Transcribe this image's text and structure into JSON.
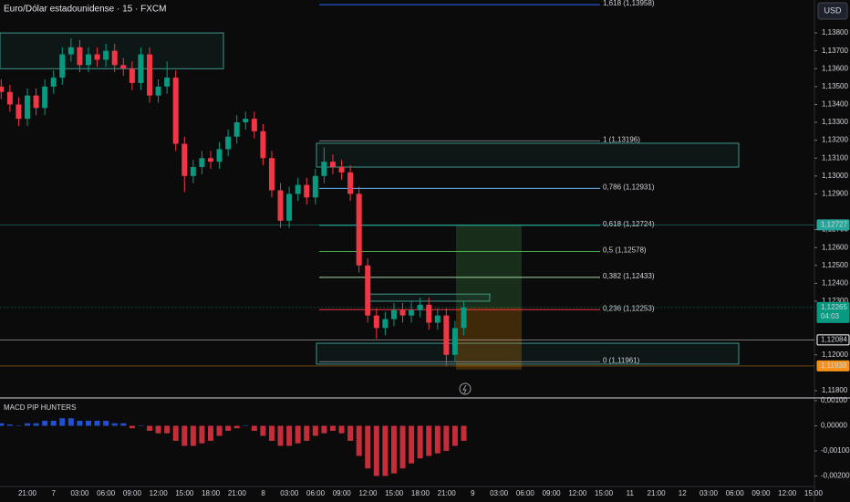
{
  "chart_data": {
    "type": "candlestick",
    "title": "Euro/Dólar estadounidense · 15 · FXCM",
    "currency_button": "USD",
    "up_color": "#089981",
    "down_color": "#f23645",
    "ylim": [
      1.11759,
      1.13984
    ],
    "yticks": [
      {
        "value": 1.138,
        "label": "1,13800"
      },
      {
        "value": 1.137,
        "label": "1,13700"
      },
      {
        "value": 1.136,
        "label": "1,13600"
      },
      {
        "value": 1.135,
        "label": "1,13500"
      },
      {
        "value": 1.134,
        "label": "1,13400"
      },
      {
        "value": 1.133,
        "label": "1,13300"
      },
      {
        "value": 1.132,
        "label": "1,13200"
      },
      {
        "value": 1.131,
        "label": "1,13100"
      },
      {
        "value": 1.13,
        "label": "1,13000"
      },
      {
        "value": 1.129,
        "label": "1,12900"
      },
      {
        "value": 1.127,
        "label": "1,12700"
      },
      {
        "value": 1.126,
        "label": "1,12600"
      },
      {
        "value": 1.125,
        "label": "1,12500"
      },
      {
        "value": 1.124,
        "label": "1,12400"
      },
      {
        "value": 1.123,
        "label": "1,12300"
      },
      {
        "value": 1.12,
        "label": "1,12000"
      },
      {
        "value": 1.118,
        "label": "1,11800"
      }
    ],
    "x_labels": [
      "21:00",
      "7",
      "03:00",
      "06:00",
      "09:00",
      "12:00",
      "15:00",
      "18:00",
      "21:00",
      "8",
      "03:00",
      "06:00",
      "09:00",
      "12:00",
      "15:00",
      "18:00",
      "21:00",
      "9",
      "03:00",
      "06:00",
      "09:00",
      "12:00",
      "15:00",
      "11",
      "21:00",
      "12",
      "03:00",
      "06:00",
      "09:00",
      "12:00",
      "15:00"
    ],
    "ohlc": [
      [
        1.135,
        1.1354,
        1.1343,
        1.1347
      ],
      [
        1.1347,
        1.1351,
        1.1336,
        1.134
      ],
      [
        1.134,
        1.1344,
        1.1328,
        1.1332
      ],
      [
        1.1332,
        1.1349,
        1.1328,
        1.1345
      ],
      [
        1.1345,
        1.1349,
        1.1334,
        1.1338
      ],
      [
        1.1338,
        1.1354,
        1.1334,
        1.135
      ],
      [
        1.135,
        1.1359,
        1.1346,
        1.1355
      ],
      [
        1.1355,
        1.1372,
        1.1351,
        1.1368
      ],
      [
        1.1368,
        1.1377,
        1.1364,
        1.1372
      ],
      [
        1.1372,
        1.1376,
        1.1358,
        1.1362
      ],
      [
        1.1362,
        1.1372,
        1.1358,
        1.1368
      ],
      [
        1.1368,
        1.1372,
        1.1361,
        1.1365
      ],
      [
        1.1365,
        1.1374,
        1.1361,
        1.137
      ],
      [
        1.137,
        1.1374,
        1.1358,
        1.1362
      ],
      [
        1.1362,
        1.1366,
        1.1356,
        1.136
      ],
      [
        1.136,
        1.1364,
        1.1348,
        1.1352
      ],
      [
        1.1352,
        1.1372,
        1.1348,
        1.1368
      ],
      [
        1.1368,
        1.1372,
        1.1341,
        1.1345
      ],
      [
        1.1345,
        1.1354,
        1.1341,
        1.135
      ],
      [
        1.135,
        1.1364,
        1.1346,
        1.1355
      ],
      [
        1.1355,
        1.1359,
        1.1314,
        1.1318
      ],
      [
        1.1318,
        1.1322,
        1.1291,
        1.13
      ],
      [
        1.13,
        1.1309,
        1.1296,
        1.1305
      ],
      [
        1.1305,
        1.1314,
        1.1301,
        1.131
      ],
      [
        1.131,
        1.1314,
        1.1304,
        1.1308
      ],
      [
        1.1308,
        1.1319,
        1.1304,
        1.1315
      ],
      [
        1.1315,
        1.1326,
        1.1311,
        1.1322
      ],
      [
        1.1322,
        1.1334,
        1.1318,
        1.133
      ],
      [
        1.133,
        1.1336,
        1.1326,
        1.1332
      ],
      [
        1.1332,
        1.1336,
        1.1321,
        1.1325
      ],
      [
        1.1325,
        1.1329,
        1.1306,
        1.131
      ],
      [
        1.131,
        1.1314,
        1.1288,
        1.1292
      ],
      [
        1.1292,
        1.1296,
        1.1271,
        1.1275
      ],
      [
        1.1275,
        1.1294,
        1.1271,
        1.129
      ],
      [
        1.129,
        1.1299,
        1.1286,
        1.1295
      ],
      [
        1.1295,
        1.1299,
        1.1284,
        1.1288
      ],
      [
        1.1288,
        1.1304,
        1.1284,
        1.13
      ],
      [
        1.13,
        1.1316,
        1.1296,
        1.1308
      ],
      [
        1.1308,
        1.1312,
        1.1301,
        1.1305
      ],
      [
        1.1305,
        1.1309,
        1.1298,
        1.1302
      ],
      [
        1.1302,
        1.1306,
        1.1286,
        1.129
      ],
      [
        1.129,
        1.1294,
        1.1246,
        1.125
      ],
      [
        1.125,
        1.1254,
        1.1218,
        1.1222
      ],
      [
        1.1222,
        1.1226,
        1.1209,
        1.1215
      ],
      [
        1.1215,
        1.1224,
        1.1211,
        1.122
      ],
      [
        1.122,
        1.1229,
        1.1216,
        1.1225
      ],
      [
        1.1225,
        1.1229,
        1.1218,
        1.1222
      ],
      [
        1.1222,
        1.123,
        1.1218,
        1.1225
      ],
      [
        1.1225,
        1.1232,
        1.1221,
        1.1228
      ],
      [
        1.1228,
        1.1232,
        1.1214,
        1.1218
      ],
      [
        1.1218,
        1.1226,
        1.1214,
        1.1222
      ],
      [
        1.1222,
        1.1226,
        1.11938,
        1.12
      ],
      [
        1.12,
        1.1219,
        1.1196,
        1.1215
      ],
      [
        1.1215,
        1.123,
        1.1211,
        1.12265
      ]
    ],
    "fib_levels": [
      {
        "label": "1,618 (1,13958)",
        "value": 1.13958,
        "color": "#2962ff"
      },
      {
        "label": "1 (1,13196)",
        "value": 1.13196,
        "color": "#787b86"
      },
      {
        "label": "0,786 (1,12931)",
        "value": 1.12931,
        "color": "#64b5f6"
      },
      {
        "label": "0,618 (1,12724)",
        "value": 1.12724,
        "color": "#26a69a"
      },
      {
        "label": "0,5 (1,12578)",
        "value": 1.12578,
        "color": "#4caf50"
      },
      {
        "label": "0,382 (1,12433)",
        "value": 1.12433,
        "color": "#a5d6a7"
      },
      {
        "label": "0,236 (1,12253)",
        "value": 1.12253,
        "color": "#f23645"
      },
      {
        "label": "0 (1,11961)",
        "value": 1.11961,
        "color": "#787b86"
      }
    ],
    "zones": [
      {
        "top": 1.138,
        "bottom": 1.136
      },
      {
        "top": 1.13183,
        "bottom": 1.1305
      },
      {
        "top": 1.12065,
        "bottom": 1.11948
      },
      {
        "top": 1.1234,
        "bottom": 1.123
      }
    ],
    "price_tags": [
      {
        "value": 1.12727,
        "label": "1,12727",
        "color": "#26a69a"
      },
      {
        "value": 1.12265,
        "label": "1,12265",
        "countdown": "04:03",
        "color": "#089981"
      },
      {
        "value": 1.12084,
        "label": "1,12084",
        "color": "#ffffff"
      },
      {
        "value": 1.11938,
        "label": "1,11938",
        "color": "#f7931a"
      }
    ],
    "macd": {
      "title": "MACD PIP HUNTERS",
      "ylim": [
        -0.00242,
        0.00111
      ],
      "yticks": [
        {
          "value": 0.001,
          "label": "0,00100"
        },
        {
          "value": 0,
          "label": "0,00000"
        },
        {
          "value": -0.001,
          "label": "-0,00100"
        },
        {
          "value": -0.002,
          "label": "-0,00200"
        }
      ],
      "positive_color": "#2962ff",
      "negative_color": "#f23645",
      "values": [
        0.0001,
        5e-05,
        0,
        0.0001,
        0.0001,
        0.0002,
        0.0002,
        0.0003,
        0.0003,
        0.0002,
        0.0002,
        0.0002,
        0.0002,
        0.0001,
        0.0001,
        -0.0001,
        0,
        -0.0002,
        -0.0003,
        -0.0003,
        -0.0006,
        -0.0008,
        -0.0008,
        -0.0007,
        -0.0006,
        -0.0004,
        -0.0002,
        -0.0001,
        0,
        -0.0002,
        -0.0004,
        -0.0006,
        -0.0008,
        -0.0008,
        -0.0007,
        -0.0006,
        -0.0004,
        -0.0003,
        -0.0002,
        -0.0003,
        -0.0006,
        -0.0012,
        -0.0017,
        -0.002,
        -0.002,
        -0.0019,
        -0.0017,
        -0.0015,
        -0.0013,
        -0.0012,
        -0.0011,
        -0.001,
        -0.0008,
        -0.0006
      ]
    }
  }
}
